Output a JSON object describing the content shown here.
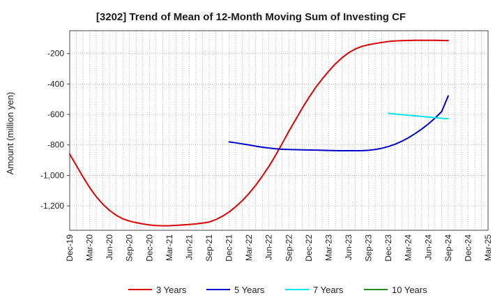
{
  "chart_data": {
    "type": "line",
    "title": "[3202]  Trend of Mean of 12-Month Moving Sum of Investing CF",
    "xlabel": "",
    "ylabel": "Amount (million yen)",
    "ylim": [
      -1360,
      -50
    ],
    "y_ticks": [
      -200,
      -400,
      -600,
      -800,
      -1000,
      -1200
    ],
    "y_tick_labels": [
      "-200",
      "-400",
      "-600",
      "-800",
      "-1,000",
      "-1,200"
    ],
    "x_tick_labels": [
      "Dec-19",
      "Mar-20",
      "Jun-20",
      "Sep-20",
      "Dec-20",
      "Mar-21",
      "Jun-21",
      "Sep-21",
      "Dec-21",
      "Mar-22",
      "Jun-22",
      "Sep-22",
      "Dec-22",
      "Mar-23",
      "Jun-23",
      "Sep-23",
      "Dec-23",
      "Mar-24",
      "Jun-24",
      "Sep-24",
      "Dec-24",
      "Mar-25"
    ],
    "grid": true,
    "legend_position": "bottom",
    "series": [
      {
        "name": "3 Years",
        "color": "#dd0000",
        "x": [
          "Dec-19",
          "Jan-20",
          "Feb-20",
          "Mar-20",
          "Apr-20",
          "May-20",
          "Jun-20",
          "Jul-20",
          "Aug-20",
          "Sep-20",
          "Oct-20",
          "Nov-20",
          "Dec-20",
          "Jan-21",
          "Feb-21",
          "Mar-21",
          "Apr-21",
          "May-21",
          "Jun-21",
          "Jul-21",
          "Aug-21",
          "Sep-21",
          "Oct-21",
          "Nov-21",
          "Dec-21",
          "Jan-22",
          "Feb-22",
          "Mar-22",
          "Apr-22",
          "May-22",
          "Jun-22",
          "Jul-22",
          "Aug-22",
          "Sep-22",
          "Oct-22",
          "Nov-22",
          "Dec-22",
          "Jan-23",
          "Feb-23",
          "Mar-23",
          "Apr-23",
          "May-23",
          "Jun-23",
          "Jul-23",
          "Aug-23",
          "Sep-23",
          "Oct-23",
          "Nov-23",
          "Dec-23",
          "Jan-24",
          "Feb-24",
          "Mar-24",
          "Apr-24",
          "May-24",
          "Jun-24",
          "Jul-24",
          "Aug-24",
          "Sep-24"
        ],
        "values": [
          -860,
          -935,
          -1010,
          -1080,
          -1140,
          -1190,
          -1230,
          -1262,
          -1285,
          -1300,
          -1310,
          -1318,
          -1325,
          -1329,
          -1331,
          -1330,
          -1328,
          -1325,
          -1322,
          -1318,
          -1313,
          -1306,
          -1290,
          -1268,
          -1240,
          -1205,
          -1165,
          -1118,
          -1065,
          -1005,
          -940,
          -868,
          -790,
          -710,
          -635,
          -560,
          -490,
          -425,
          -368,
          -316,
          -268,
          -228,
          -195,
          -170,
          -153,
          -142,
          -134,
          -127,
          -121,
          -117,
          -115,
          -114,
          -113,
          -113,
          -113,
          -113,
          -114,
          -115
        ]
      },
      {
        "name": "5 Years",
        "color": "#0000cc",
        "x": [
          "Dec-21",
          "Jan-22",
          "Feb-22",
          "Mar-22",
          "Apr-22",
          "May-22",
          "Jun-22",
          "Jul-22",
          "Aug-22",
          "Sep-22",
          "Oct-22",
          "Nov-22",
          "Dec-22",
          "Jan-23",
          "Feb-23",
          "Mar-23",
          "Apr-23",
          "May-23",
          "Jun-23",
          "Jul-23",
          "Aug-23",
          "Sep-23",
          "Oct-23",
          "Nov-23",
          "Dec-23",
          "Jan-24",
          "Feb-24",
          "Mar-24",
          "Apr-24",
          "May-24",
          "Jun-24",
          "Jul-24",
          "Aug-24",
          "Sep-24"
        ],
        "values": [
          -780,
          -786,
          -793,
          -800,
          -808,
          -815,
          -820,
          -825,
          -828,
          -830,
          -831,
          -832,
          -833,
          -834,
          -835,
          -836,
          -837,
          -838,
          -838,
          -838,
          -837,
          -835,
          -830,
          -822,
          -810,
          -795,
          -776,
          -753,
          -726,
          -696,
          -662,
          -624,
          -582,
          -478
        ]
      },
      {
        "name": "7 Years",
        "color": "#00e5ee",
        "x": [
          "Dec-23",
          "Jan-24",
          "Feb-24",
          "Mar-24",
          "Apr-24",
          "May-24",
          "Jun-24",
          "Jul-24",
          "Aug-24",
          "Sep-24"
        ],
        "values": [
          -592,
          -597,
          -601,
          -605,
          -609,
          -613,
          -617,
          -621,
          -625,
          -628
        ]
      },
      {
        "name": "10 Years",
        "color": "#228b22",
        "x": [],
        "values": []
      }
    ]
  }
}
